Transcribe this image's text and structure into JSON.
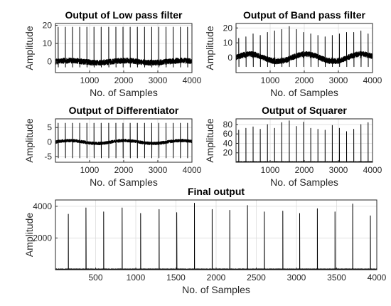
{
  "chart_data": [
    {
      "type": "line",
      "title": "Output of Low pass filter",
      "xlabel": "No. of Samples",
      "ylabel": "Amplitude",
      "xlim": [
        0,
        4000
      ],
      "ylim": [
        -6,
        21
      ],
      "xticks": [
        1000,
        2000,
        3000,
        4000
      ],
      "yticks": [
        0,
        10,
        20
      ],
      "grid": true,
      "signal": {
        "n": 4000,
        "baseline": 0,
        "noise": 1.5,
        "wave": 0.6,
        "peak_x": [
          80,
          290,
          500,
          710,
          920,
          1130,
          1340,
          1560,
          1770,
          1980,
          2190,
          2400,
          2610,
          2820,
          3030,
          3240,
          3450,
          3660,
          3870
        ],
        "peak_y": [
          19,
          19,
          19,
          19,
          19,
          19,
          19,
          19,
          19,
          19,
          19,
          19,
          19,
          19,
          19,
          19,
          19,
          19,
          19
        ],
        "trough": -3,
        "width": 7
      }
    },
    {
      "type": "line",
      "title": "Output of Band pass filter",
      "xlabel": "No. of Samples",
      "ylabel": "Amplitude",
      "xlim": [
        0,
        4000
      ],
      "ylim": [
        -10,
        23
      ],
      "xticks": [
        1000,
        2000,
        3000,
        4000
      ],
      "yticks": [
        0,
        10,
        20
      ],
      "grid": true,
      "signal": {
        "n": 4000,
        "baseline": 0,
        "noise": 1.8,
        "wave": 2.5,
        "peak_x": [
          80,
          290,
          500,
          710,
          920,
          1130,
          1340,
          1560,
          1770,
          1980,
          2190,
          2400,
          2610,
          2820,
          3030,
          3240,
          3450,
          3660,
          3870
        ],
        "peak_y": [
          13,
          14,
          16,
          15,
          17,
          18,
          19,
          21,
          19,
          17,
          16,
          15,
          14,
          15,
          16,
          17,
          17,
          18,
          16
        ],
        "trough": -6,
        "width": 9
      }
    },
    {
      "type": "line",
      "title": "Output of Differentiator",
      "xlabel": "No. of Samples",
      "ylabel": "Amplitude",
      "xlim": [
        0,
        4000
      ],
      "ylim": [
        -7,
        8
      ],
      "xticks": [
        1000,
        2000,
        3000,
        4000
      ],
      "yticks": [
        -5,
        0,
        5
      ],
      "grid": true,
      "signal": {
        "n": 4000,
        "baseline": 0,
        "noise": 0.5,
        "wave": 0.5,
        "peak_x": [
          80,
          290,
          500,
          710,
          920,
          1130,
          1340,
          1560,
          1770,
          1980,
          2190,
          2400,
          2610,
          2820,
          3030,
          3240,
          3450,
          3660,
          3870
        ],
        "peak_y": [
          6.5,
          6.5,
          6.5,
          6.5,
          6.5,
          6.5,
          6.5,
          6.5,
          6.5,
          6.5,
          6.5,
          6.5,
          6.5,
          6.5,
          6.5,
          6.5,
          6.5,
          6.5,
          6.5
        ],
        "trough": -5.5,
        "width": 5
      }
    },
    {
      "type": "line",
      "title": "Output of Squarer",
      "xlabel": "No. of Samples",
      "ylabel": "Amplitude",
      "xlim": [
        0,
        4000
      ],
      "ylim": [
        0,
        92
      ],
      "xticks": [
        1000,
        2000,
        3000,
        4000
      ],
      "yticks": [
        20,
        40,
        60,
        80
      ],
      "grid": true,
      "signal": {
        "n": 4000,
        "baseline": 1,
        "noise": 0.6,
        "wave": 0,
        "peak_x": [
          80,
          290,
          500,
          710,
          920,
          1130,
          1340,
          1560,
          1770,
          1980,
          2190,
          2400,
          2610,
          2820,
          3030,
          3240,
          3450,
          3660,
          3870
        ],
        "peak_y": [
          68,
          72,
          75,
          70,
          80,
          72,
          84,
          88,
          76,
          85,
          72,
          70,
          68,
          78,
          72,
          65,
          70,
          80,
          84
        ],
        "trough": 0,
        "width": 4
      }
    },
    {
      "type": "line",
      "title": "Final output",
      "xlabel": "No. of Samples",
      "ylabel": "Amplitude",
      "xlim": [
        0,
        4000
      ],
      "ylim": [
        0,
        4400
      ],
      "xticks": [
        500,
        1000,
        1500,
        2000,
        2500,
        3000,
        3500,
        4000
      ],
      "yticks": [
        2000,
        4000
      ],
      "grid": true,
      "signal": {
        "n": 4000,
        "baseline": 40,
        "noise": 15,
        "wave": 0,
        "peak_x": [
          160,
          380,
          600,
          830,
          1060,
          1290,
          1510,
          1730,
          1950,
          2170,
          2390,
          2600,
          2830,
          3040,
          3260,
          3480,
          3700,
          3920
        ],
        "peak_y": [
          3500,
          3900,
          3650,
          3900,
          3550,
          3800,
          3600,
          4200,
          3800,
          3750,
          4050,
          3650,
          3700,
          3550,
          3850,
          3650,
          4150,
          3400
        ],
        "trough": 0,
        "width": 18
      }
    }
  ]
}
